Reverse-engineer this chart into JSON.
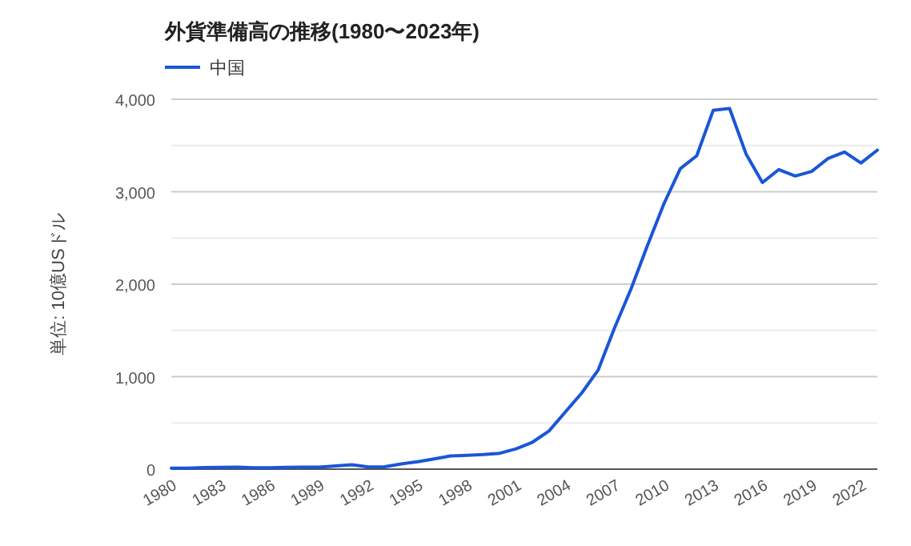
{
  "chart_data": {
    "type": "line",
    "title": "外貨準備高の推移(1980〜2023年)",
    "ylabel": "単位: 10億USドル",
    "legend": "top left",
    "grid": "y",
    "marker": "none",
    "line_style": "solid",
    "x": [
      1980,
      1981,
      1982,
      1983,
      1984,
      1985,
      1986,
      1987,
      1988,
      1989,
      1990,
      1991,
      1992,
      1993,
      1994,
      1995,
      1996,
      1997,
      1998,
      1999,
      2000,
      2001,
      2002,
      2003,
      2004,
      2005,
      2006,
      2007,
      2008,
      2009,
      2010,
      2011,
      2012,
      2013,
      2014,
      2015,
      2016,
      2017,
      2018,
      2019,
      2020,
      2021,
      2022,
      2023
    ],
    "xlim": [
      1980,
      2023
    ],
    "xticks": [
      1980,
      1983,
      1986,
      1989,
      1992,
      1995,
      1998,
      2001,
      2004,
      2007,
      2010,
      2013,
      2016,
      2019,
      2022
    ],
    "ylim": [
      0,
      4000
    ],
    "yticks": [
      {
        "value": 0,
        "label": "0"
      },
      {
        "value": 500,
        "label": null
      },
      {
        "value": 1000,
        "label": "1,000"
      },
      {
        "value": 1500,
        "label": null
      },
      {
        "value": 2000,
        "label": "2,000"
      },
      {
        "value": 2500,
        "label": null
      },
      {
        "value": 3000,
        "label": "3,000"
      },
      {
        "value": 3500,
        "label": null
      },
      {
        "value": 4000,
        "label": "4,000"
      }
    ],
    "series": [
      {
        "name": "中国",
        "color": "#1a56d6",
        "values": [
          10,
          10,
          17,
          20,
          21,
          16,
          16,
          19,
          22,
          22,
          34,
          48,
          24,
          26,
          57,
          80,
          111,
          143,
          149,
          158,
          172,
          220,
          292,
          412,
          619,
          825,
          1073,
          1530,
          1950,
          2420,
          2870,
          3250,
          3390,
          3880,
          3900,
          3410,
          3100,
          3240,
          3170,
          3220,
          3360,
          3430,
          3310,
          3450
        ]
      }
    ]
  }
}
